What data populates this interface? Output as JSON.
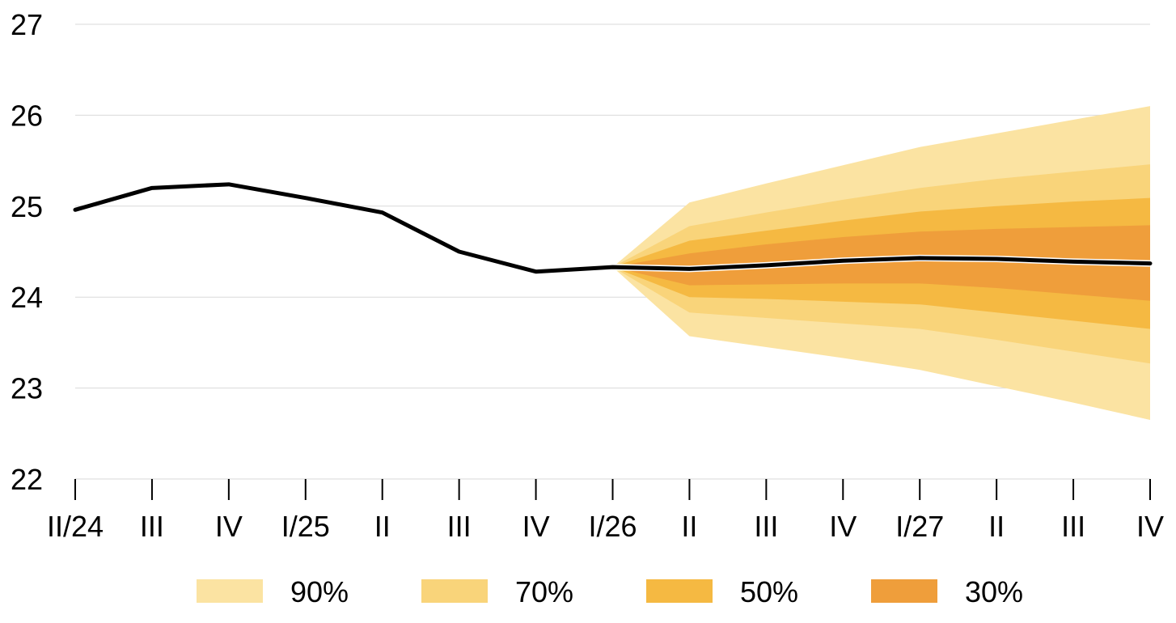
{
  "chart_data": {
    "type": "area",
    "categories": [
      "II/24",
      "III",
      "IV",
      "I/25",
      "II",
      "III",
      "IV",
      "I/26",
      "II",
      "III",
      "IV",
      "I/27",
      "II",
      "III",
      "IV"
    ],
    "ylim": [
      22,
      27
    ],
    "yticks": [
      22,
      23,
      24,
      25,
      26,
      27
    ],
    "grid": true,
    "legend_position": "bottom",
    "colors": {
      "line": "#000000",
      "grid": "#d9d9d9",
      "band_90": "#fbe3a2",
      "band_70": "#f9d47a",
      "band_50": "#f5b942",
      "band_30": "#ef9e3b"
    },
    "central_line": [
      24.96,
      25.2,
      25.24,
      25.09,
      24.93,
      24.5,
      24.28,
      24.33,
      24.31,
      24.35,
      24.4,
      24.43,
      24.42,
      24.39,
      24.37
    ],
    "fan_start_index": 7,
    "bands": [
      {
        "name": "90%",
        "upper": [
          24.33,
          25.04,
          25.25,
          25.45,
          25.65,
          25.8,
          25.95,
          26.1
        ],
        "lower": [
          24.33,
          23.57,
          23.45,
          23.33,
          23.2,
          23.02,
          22.84,
          22.65
        ]
      },
      {
        "name": "70%",
        "upper": [
          24.33,
          24.78,
          24.93,
          25.07,
          25.2,
          25.3,
          25.38,
          25.46
        ],
        "lower": [
          24.33,
          23.83,
          23.77,
          23.71,
          23.65,
          23.53,
          23.4,
          23.27
        ]
      },
      {
        "name": "50%",
        "upper": [
          24.33,
          24.62,
          24.73,
          24.84,
          24.94,
          25.0,
          25.05,
          25.09
        ],
        "lower": [
          24.33,
          24.0,
          23.98,
          23.95,
          23.92,
          23.83,
          23.74,
          23.65
        ]
      },
      {
        "name": "30%",
        "upper": [
          24.33,
          24.48,
          24.58,
          24.66,
          24.72,
          24.75,
          24.77,
          24.79
        ],
        "lower": [
          24.33,
          24.13,
          24.14,
          24.15,
          24.15,
          24.1,
          24.03,
          23.96
        ]
      }
    ]
  }
}
